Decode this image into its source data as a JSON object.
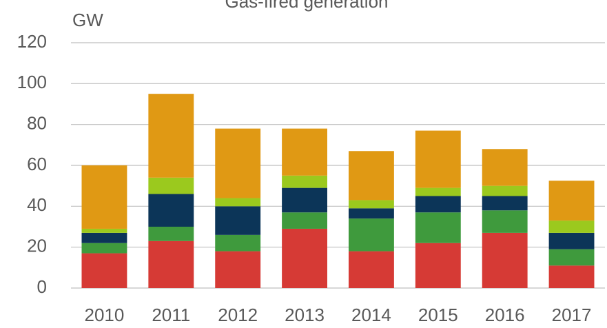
{
  "chart_data": {
    "type": "stacked_bar",
    "title": "Gas-fired generation",
    "y_label": "GW",
    "categories": [
      "2010",
      "2011",
      "2012",
      "2013",
      "2014",
      "2015",
      "2016",
      "2017"
    ],
    "series": [
      {
        "color": "#d63a35",
        "values": [
          17,
          23,
          18,
          29,
          18,
          22,
          27,
          11
        ]
      },
      {
        "color": "#3f9a3d",
        "values": [
          5,
          7,
          8,
          8,
          16,
          15,
          11,
          8
        ]
      },
      {
        "color": "#0c3558",
        "values": [
          5,
          16,
          14,
          12,
          5,
          8,
          7,
          8
        ]
      },
      {
        "color": "#9bc91e",
        "values": [
          2,
          8,
          4,
          6,
          4,
          4,
          5,
          6
        ]
      },
      {
        "color": "#e09914",
        "values": [
          31,
          41,
          34,
          23,
          24,
          28,
          18,
          19.5
        ]
      }
    ],
    "ylim": [
      0,
      120
    ],
    "yticks": [
      0,
      20,
      40,
      60,
      80,
      100,
      120
    ],
    "grid": true
  }
}
